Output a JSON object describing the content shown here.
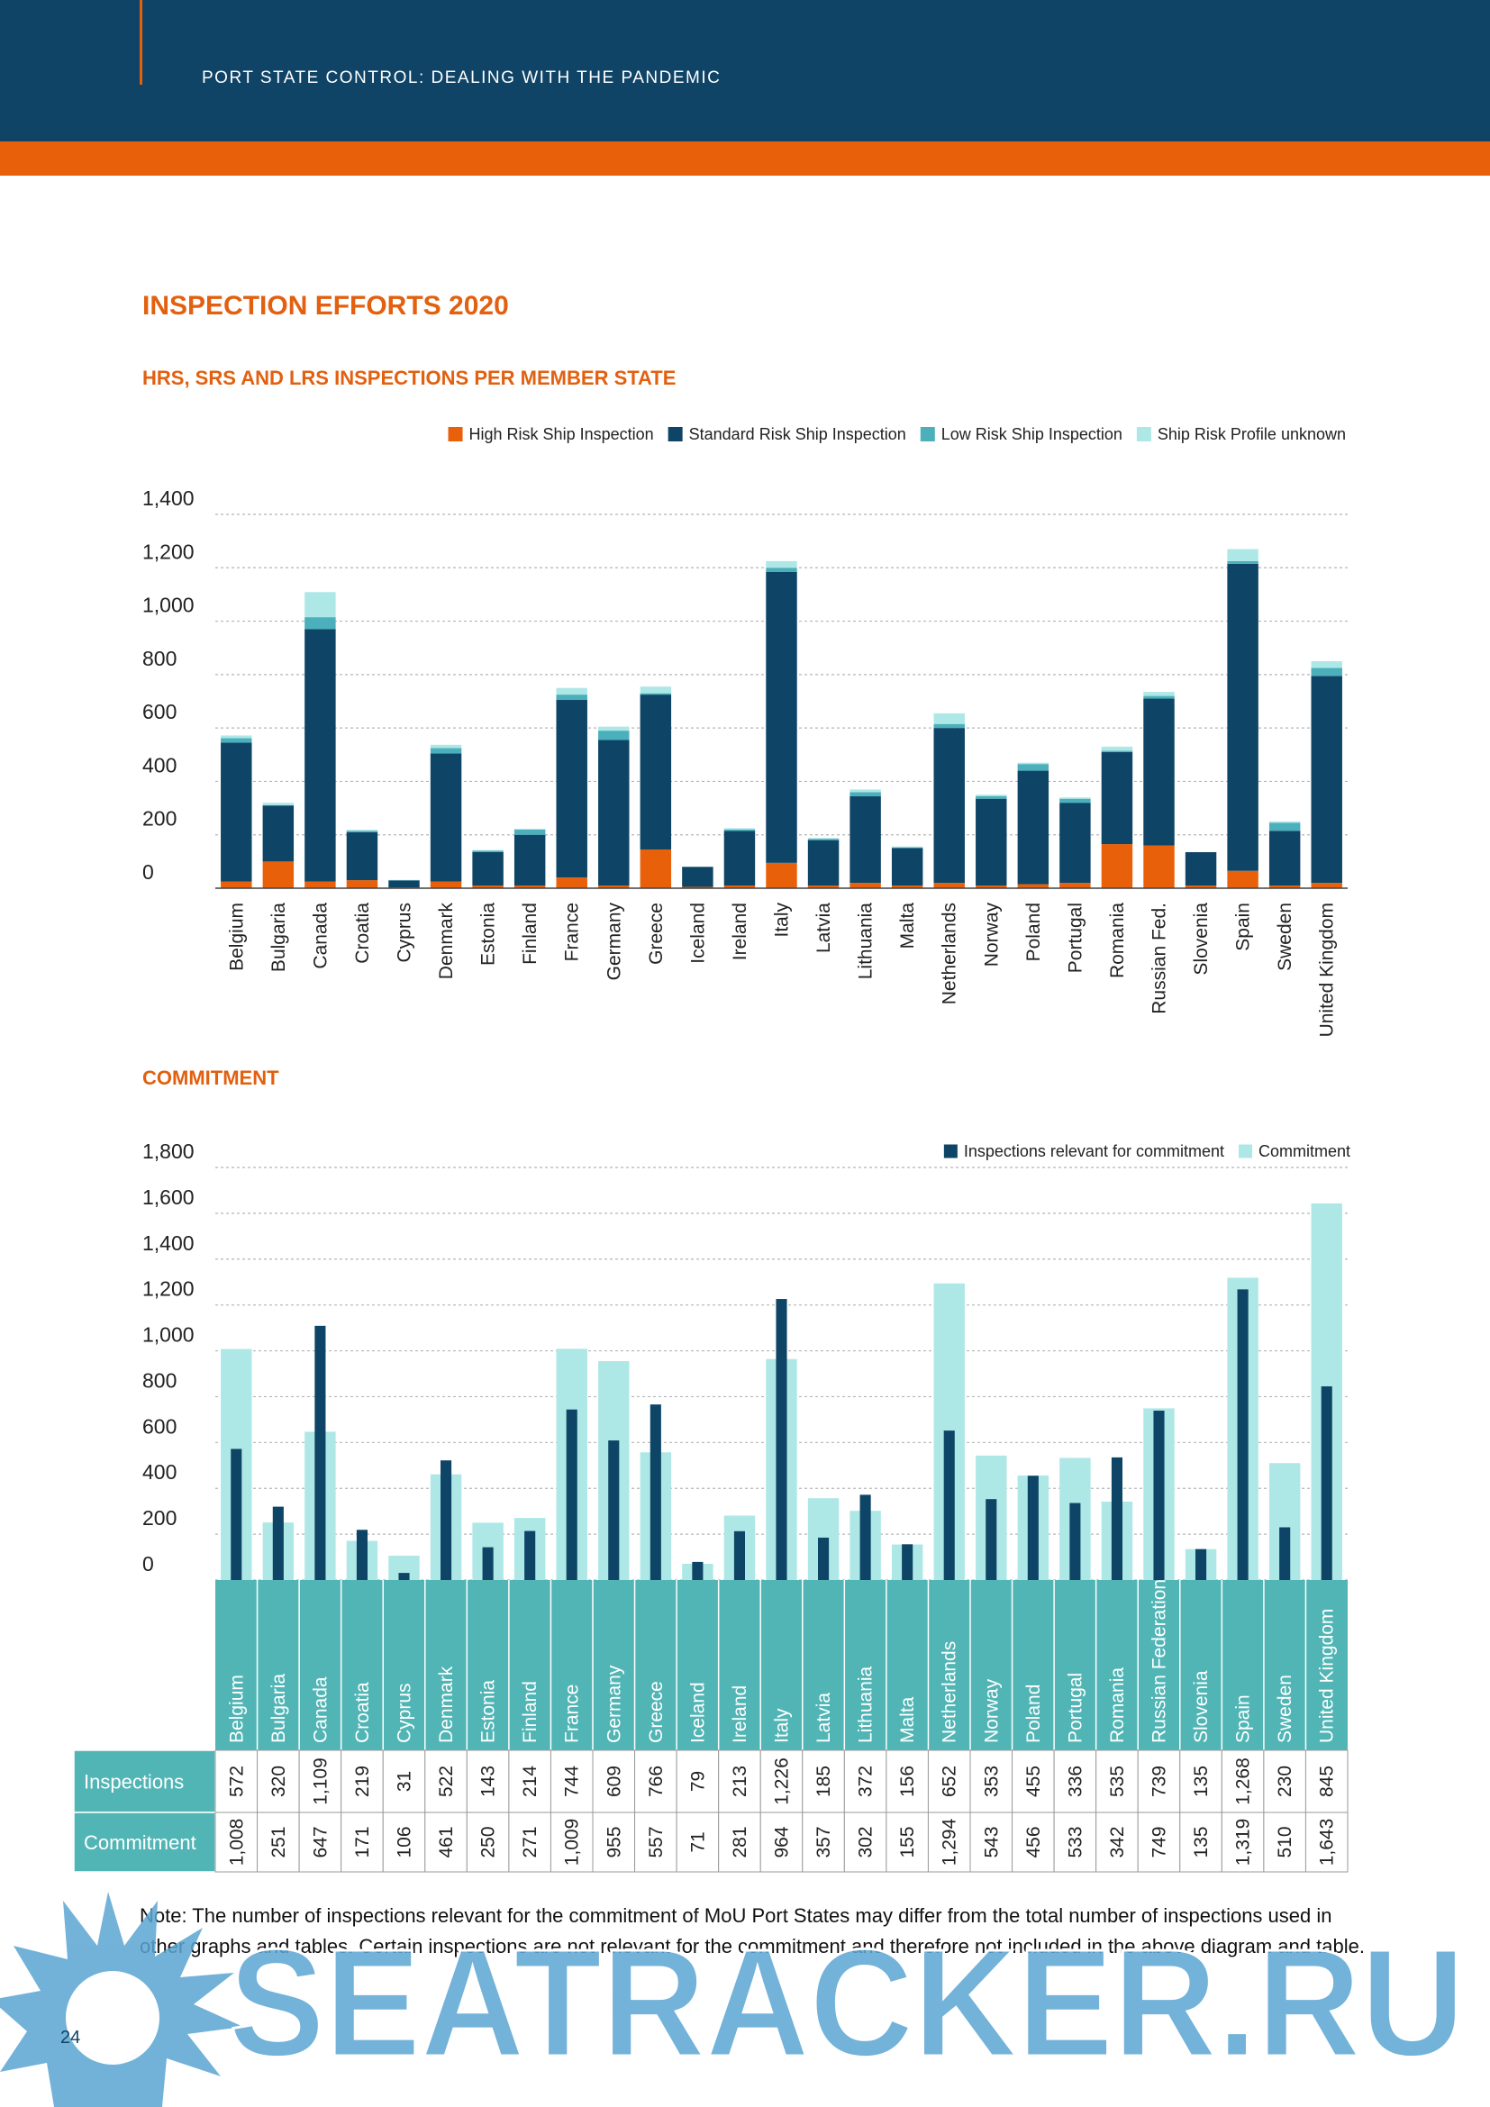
{
  "header": {
    "running_title": "PORT STATE CONTROL: DEALING WITH THE PANDEMIC"
  },
  "title": "INSPECTION EFFORTS 2020",
  "chart_data": [
    {
      "type": "stacked_bar",
      "title": "HRS, SRS AND LRS INSPECTIONS PER MEMBER STATE",
      "categories": [
        "Belgium",
        "Bulgaria",
        "Canada",
        "Croatia",
        "Cyprus",
        "Denmark",
        "Estonia",
        "Finland",
        "France",
        "Germany",
        "Greece",
        "Iceland",
        "Ireland",
        "Italy",
        "Latvia",
        "Lithuania",
        "Malta",
        "Netherlands",
        "Norway",
        "Poland",
        "Portugal",
        "Romania",
        "Russian Fed.",
        "Slovenia",
        "Spain",
        "Sweden",
        "United Kingdom"
      ],
      "series": [
        {
          "name": "High Risk Ship Inspection",
          "color": "#e8600a",
          "values": [
            25,
            100,
            25,
            30,
            3,
            25,
            10,
            10,
            40,
            10,
            145,
            5,
            10,
            95,
            10,
            20,
            10,
            20,
            10,
            15,
            20,
            165,
            160,
            10,
            65,
            10,
            20
          ]
        },
        {
          "name": "Standard Risk Ship Inspection",
          "color": "#0e4566",
          "values": [
            520,
            210,
            945,
            180,
            26,
            480,
            125,
            190,
            665,
            545,
            580,
            75,
            205,
            1090,
            170,
            325,
            140,
            580,
            325,
            425,
            300,
            345,
            550,
            125,
            1150,
            205,
            775
          ]
        },
        {
          "name": "Low Risk Ship Inspection",
          "color": "#4bb0bb",
          "values": [
            17,
            0,
            45,
            5,
            1,
            20,
            5,
            20,
            20,
            35,
            5,
            0,
            5,
            15,
            5,
            15,
            3,
            15,
            10,
            25,
            15,
            5,
            10,
            0,
            10,
            30,
            30
          ]
        },
        {
          "name": "Ship Risk Profile unknown",
          "color": "#aee8e6",
          "values": [
            10,
            10,
            94,
            4,
            1,
            12,
            3,
            2,
            25,
            15,
            25,
            0,
            5,
            25,
            3,
            10,
            3,
            40,
            5,
            5,
            5,
            15,
            15,
            0,
            45,
            5,
            25
          ]
        }
      ],
      "ylim": [
        0,
        1400
      ],
      "yticks": [
        0,
        200,
        400,
        600,
        800,
        {
          "value": 1000,
          "label": "1,000"
        },
        {
          "value": 1200,
          "label": "1,200"
        },
        {
          "value": 1400,
          "label": "1,400"
        }
      ],
      "grid": true,
      "legend": "top-right"
    },
    {
      "type": "overlay_bar",
      "title": "COMMITMENT",
      "categories": [
        "Belgium",
        "Bulgaria",
        "Canada",
        "Croatia",
        "Cyprus",
        "Denmark",
        "Estonia",
        "Finland",
        "France",
        "Germany",
        "Greece",
        "Iceland",
        "Ireland",
        "Italy",
        "Latvia",
        "Lithuania",
        "Malta",
        "Netherlands",
        "Norway",
        "Poland",
        "Portugal",
        "Romania",
        "Russian Federation",
        "Slovenia",
        "Spain",
        "Sweden",
        "United Kingdom"
      ],
      "series": [
        {
          "name": "Inspections relevant for commitment",
          "color": "#0e4566",
          "values": [
            572,
            320,
            1109,
            219,
            31,
            522,
            143,
            214,
            744,
            609,
            766,
            79,
            213,
            1226,
            185,
            372,
            156,
            652,
            353,
            455,
            336,
            535,
            739,
            135,
            1268,
            230,
            845
          ],
          "value_labels": [
            "572",
            "320",
            "1,109",
            "219",
            "31",
            "522",
            "143",
            "214",
            "744",
            "609",
            "766",
            "79",
            "213",
            "1,226",
            "185",
            "372",
            "156",
            "652",
            "353",
            "455",
            "336",
            "535",
            "739",
            "135",
            "1,268",
            "230",
            "845"
          ]
        },
        {
          "name": "Commitment",
          "color": "#aee8e6",
          "values": [
            1008,
            251,
            647,
            171,
            106,
            461,
            250,
            271,
            1009,
            955,
            557,
            71,
            281,
            964,
            357,
            302,
            155,
            1294,
            543,
            456,
            533,
            342,
            749,
            135,
            1319,
            510,
            1643
          ],
          "value_labels": [
            "1,008",
            "251",
            "647",
            "171",
            "106",
            "461",
            "250",
            "271",
            "1,009",
            "955",
            "557",
            "71",
            "281",
            "964",
            "357",
            "302",
            "155",
            "1,294",
            "543",
            "456",
            "533",
            "342",
            "749",
            "135",
            "1,319",
            "510",
            "1,643"
          ]
        }
      ],
      "ylim": [
        0,
        1800
      ],
      "yticks": [
        0,
        200,
        400,
        600,
        800,
        {
          "value": 1000,
          "label": "1,000"
        },
        {
          "value": 1200,
          "label": "1,200"
        },
        {
          "value": 1400,
          "label": "1,400"
        },
        {
          "value": 1600,
          "label": "1,600"
        },
        {
          "value": 1800,
          "label": "1,800"
        }
      ],
      "grid": true,
      "legend": "top-right",
      "table_row_labels": [
        "Inspections",
        "Commitment"
      ]
    }
  ],
  "note": "Note: The number of inspections relevant for the commitment of MoU Port States may differ from the total number of inspections used in other graphs and tables. Certain inspections are not relevant for the commitment and therefore not included in the above diagram and table.",
  "page_number": "24",
  "watermark": "SEATRACKER.RU"
}
